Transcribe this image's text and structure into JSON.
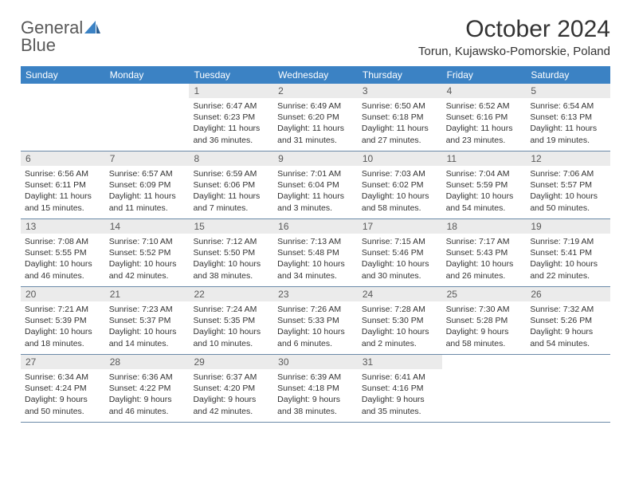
{
  "logo": {
    "line1": "General",
    "line2": "Blue"
  },
  "title": "October 2024",
  "location": "Torun, Kujawsko-Pomorskie, Poland",
  "colors": {
    "header_bg": "#3b82c4",
    "header_text": "#ffffff",
    "daynum_bg": "#ebebeb",
    "daynum_text": "#595959",
    "body_text": "#333333",
    "logo_gray": "#595959",
    "logo_blue": "#3b82c4",
    "week_border": "#6b8aa8"
  },
  "weekdays": [
    "Sunday",
    "Monday",
    "Tuesday",
    "Wednesday",
    "Thursday",
    "Friday",
    "Saturday"
  ],
  "weeks": [
    [
      {
        "empty": true
      },
      {
        "empty": true
      },
      {
        "num": "1",
        "sunrise": "Sunrise: 6:47 AM",
        "sunset": "Sunset: 6:23 PM",
        "daylight": "Daylight: 11 hours and 36 minutes."
      },
      {
        "num": "2",
        "sunrise": "Sunrise: 6:49 AM",
        "sunset": "Sunset: 6:20 PM",
        "daylight": "Daylight: 11 hours and 31 minutes."
      },
      {
        "num": "3",
        "sunrise": "Sunrise: 6:50 AM",
        "sunset": "Sunset: 6:18 PM",
        "daylight": "Daylight: 11 hours and 27 minutes."
      },
      {
        "num": "4",
        "sunrise": "Sunrise: 6:52 AM",
        "sunset": "Sunset: 6:16 PM",
        "daylight": "Daylight: 11 hours and 23 minutes."
      },
      {
        "num": "5",
        "sunrise": "Sunrise: 6:54 AM",
        "sunset": "Sunset: 6:13 PM",
        "daylight": "Daylight: 11 hours and 19 minutes."
      }
    ],
    [
      {
        "num": "6",
        "sunrise": "Sunrise: 6:56 AM",
        "sunset": "Sunset: 6:11 PM",
        "daylight": "Daylight: 11 hours and 15 minutes."
      },
      {
        "num": "7",
        "sunrise": "Sunrise: 6:57 AM",
        "sunset": "Sunset: 6:09 PM",
        "daylight": "Daylight: 11 hours and 11 minutes."
      },
      {
        "num": "8",
        "sunrise": "Sunrise: 6:59 AM",
        "sunset": "Sunset: 6:06 PM",
        "daylight": "Daylight: 11 hours and 7 minutes."
      },
      {
        "num": "9",
        "sunrise": "Sunrise: 7:01 AM",
        "sunset": "Sunset: 6:04 PM",
        "daylight": "Daylight: 11 hours and 3 minutes."
      },
      {
        "num": "10",
        "sunrise": "Sunrise: 7:03 AM",
        "sunset": "Sunset: 6:02 PM",
        "daylight": "Daylight: 10 hours and 58 minutes."
      },
      {
        "num": "11",
        "sunrise": "Sunrise: 7:04 AM",
        "sunset": "Sunset: 5:59 PM",
        "daylight": "Daylight: 10 hours and 54 minutes."
      },
      {
        "num": "12",
        "sunrise": "Sunrise: 7:06 AM",
        "sunset": "Sunset: 5:57 PM",
        "daylight": "Daylight: 10 hours and 50 minutes."
      }
    ],
    [
      {
        "num": "13",
        "sunrise": "Sunrise: 7:08 AM",
        "sunset": "Sunset: 5:55 PM",
        "daylight": "Daylight: 10 hours and 46 minutes."
      },
      {
        "num": "14",
        "sunrise": "Sunrise: 7:10 AM",
        "sunset": "Sunset: 5:52 PM",
        "daylight": "Daylight: 10 hours and 42 minutes."
      },
      {
        "num": "15",
        "sunrise": "Sunrise: 7:12 AM",
        "sunset": "Sunset: 5:50 PM",
        "daylight": "Daylight: 10 hours and 38 minutes."
      },
      {
        "num": "16",
        "sunrise": "Sunrise: 7:13 AM",
        "sunset": "Sunset: 5:48 PM",
        "daylight": "Daylight: 10 hours and 34 minutes."
      },
      {
        "num": "17",
        "sunrise": "Sunrise: 7:15 AM",
        "sunset": "Sunset: 5:46 PM",
        "daylight": "Daylight: 10 hours and 30 minutes."
      },
      {
        "num": "18",
        "sunrise": "Sunrise: 7:17 AM",
        "sunset": "Sunset: 5:43 PM",
        "daylight": "Daylight: 10 hours and 26 minutes."
      },
      {
        "num": "19",
        "sunrise": "Sunrise: 7:19 AM",
        "sunset": "Sunset: 5:41 PM",
        "daylight": "Daylight: 10 hours and 22 minutes."
      }
    ],
    [
      {
        "num": "20",
        "sunrise": "Sunrise: 7:21 AM",
        "sunset": "Sunset: 5:39 PM",
        "daylight": "Daylight: 10 hours and 18 minutes."
      },
      {
        "num": "21",
        "sunrise": "Sunrise: 7:23 AM",
        "sunset": "Sunset: 5:37 PM",
        "daylight": "Daylight: 10 hours and 14 minutes."
      },
      {
        "num": "22",
        "sunrise": "Sunrise: 7:24 AM",
        "sunset": "Sunset: 5:35 PM",
        "daylight": "Daylight: 10 hours and 10 minutes."
      },
      {
        "num": "23",
        "sunrise": "Sunrise: 7:26 AM",
        "sunset": "Sunset: 5:33 PM",
        "daylight": "Daylight: 10 hours and 6 minutes."
      },
      {
        "num": "24",
        "sunrise": "Sunrise: 7:28 AM",
        "sunset": "Sunset: 5:30 PM",
        "daylight": "Daylight: 10 hours and 2 minutes."
      },
      {
        "num": "25",
        "sunrise": "Sunrise: 7:30 AM",
        "sunset": "Sunset: 5:28 PM",
        "daylight": "Daylight: 9 hours and 58 minutes."
      },
      {
        "num": "26",
        "sunrise": "Sunrise: 7:32 AM",
        "sunset": "Sunset: 5:26 PM",
        "daylight": "Daylight: 9 hours and 54 minutes."
      }
    ],
    [
      {
        "num": "27",
        "sunrise": "Sunrise: 6:34 AM",
        "sunset": "Sunset: 4:24 PM",
        "daylight": "Daylight: 9 hours and 50 minutes."
      },
      {
        "num": "28",
        "sunrise": "Sunrise: 6:36 AM",
        "sunset": "Sunset: 4:22 PM",
        "daylight": "Daylight: 9 hours and 46 minutes."
      },
      {
        "num": "29",
        "sunrise": "Sunrise: 6:37 AM",
        "sunset": "Sunset: 4:20 PM",
        "daylight": "Daylight: 9 hours and 42 minutes."
      },
      {
        "num": "30",
        "sunrise": "Sunrise: 6:39 AM",
        "sunset": "Sunset: 4:18 PM",
        "daylight": "Daylight: 9 hours and 38 minutes."
      },
      {
        "num": "31",
        "sunrise": "Sunrise: 6:41 AM",
        "sunset": "Sunset: 4:16 PM",
        "daylight": "Daylight: 9 hours and 35 minutes."
      },
      {
        "empty": true
      },
      {
        "empty": true
      }
    ]
  ]
}
